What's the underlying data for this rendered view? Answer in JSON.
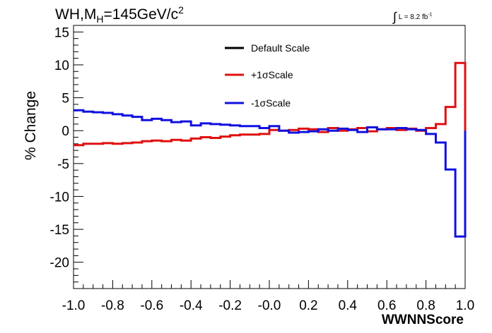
{
  "chart_data": {
    "type": "line",
    "title": "WH,M",
    "title_sub": "H",
    "title_rest": "=145GeV/c",
    "title_sup": "2",
    "lumi_label": "L = 8.2 fb",
    "lumi_sup": "-1",
    "lumi_integral": "∫",
    "xlabel": "WWNNScore",
    "ylabel": "% Change",
    "xlim": [
      -1.0,
      1.0
    ],
    "ylim": [
      -24,
      16
    ],
    "x_ticks": [
      "-1.0",
      "-0.8",
      "-0.6",
      "-0.4",
      "-0.2",
      "-0.0",
      "0.2",
      "0.4",
      "0.6",
      "0.8",
      "1.0"
    ],
    "y_ticks": [
      "15",
      "10",
      "5",
      "0",
      "-5",
      "-10",
      "-15",
      "-20"
    ],
    "legend_position": "top-center",
    "bin_edges": [
      -1.0,
      -0.95,
      -0.9,
      -0.85,
      -0.8,
      -0.75,
      -0.7,
      -0.65,
      -0.6,
      -0.55,
      -0.5,
      -0.45,
      -0.4,
      -0.35,
      -0.3,
      -0.25,
      -0.2,
      -0.15,
      -0.1,
      -0.05,
      0.0,
      0.05,
      0.1,
      0.15,
      0.2,
      0.25,
      0.3,
      0.35,
      0.4,
      0.45,
      0.5,
      0.55,
      0.6,
      0.65,
      0.7,
      0.75,
      0.8,
      0.85,
      0.9,
      0.95,
      1.0
    ],
    "series": [
      {
        "name": "Default Scale",
        "color": "#000000",
        "values": [
          0,
          0,
          0,
          0,
          0,
          0,
          0,
          0,
          0,
          0,
          0,
          0,
          0,
          0,
          0,
          0,
          0,
          0,
          0,
          0,
          0,
          0,
          0,
          0,
          0,
          0,
          0,
          0,
          0,
          0,
          0,
          0,
          0,
          0,
          0,
          0,
          0,
          0,
          0,
          0
        ]
      },
      {
        "name": "+1σScale",
        "color": "#e01010",
        "values": [
          -2.2,
          -2.0,
          -2.0,
          -1.9,
          -2.0,
          -1.9,
          -1.8,
          -1.6,
          -1.5,
          -1.6,
          -1.4,
          -1.5,
          -1.2,
          -1.0,
          -1.1,
          -0.9,
          -0.7,
          -0.6,
          -0.6,
          -0.5,
          0.1,
          0.0,
          0.1,
          0.3,
          0.2,
          -0.2,
          0.4,
          0.0,
          0.2,
          0.4,
          -0.1,
          0.2,
          0.4,
          0.1,
          0.3,
          0.0,
          0.4,
          1.0,
          3.6,
          10.3
        ]
      },
      {
        "name": "-1σScale",
        "color": "#1010e0",
        "values": [
          3.1,
          2.9,
          2.8,
          2.7,
          2.5,
          2.3,
          2.1,
          1.6,
          1.8,
          1.6,
          1.3,
          1.4,
          0.8,
          1.1,
          1.0,
          0.9,
          0.8,
          0.7,
          0.7,
          0.4,
          0.7,
          0.0,
          -0.3,
          -0.2,
          -0.1,
          0.2,
          0.0,
          0.3,
          0.1,
          -0.2,
          0.5,
          0.2,
          0.2,
          0.4,
          0.2,
          0.1,
          -0.5,
          -1.8,
          -5.9,
          -16.1
        ]
      }
    ]
  }
}
